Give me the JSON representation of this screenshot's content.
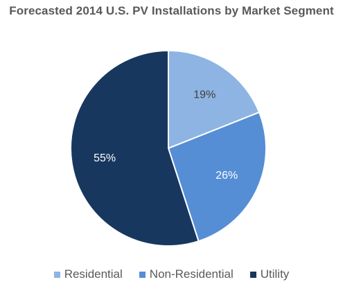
{
  "chart_data": {
    "type": "pie",
    "title": "Forecasted 2014 U.S. PV Installations by Market Segment",
    "categories": [
      "Residential",
      "Non-Residential",
      "Utility"
    ],
    "values": [
      19,
      26,
      55
    ],
    "labels": [
      "19%",
      "26%",
      "55%"
    ],
    "colors": [
      "#8eb4e3",
      "#558ed5",
      "#17375e"
    ],
    "label_colors": [
      "#404040",
      "#ffffff",
      "#ffffff"
    ],
    "legend_position": "bottom",
    "start_angle": "12 o'clock",
    "direction": "clockwise"
  }
}
